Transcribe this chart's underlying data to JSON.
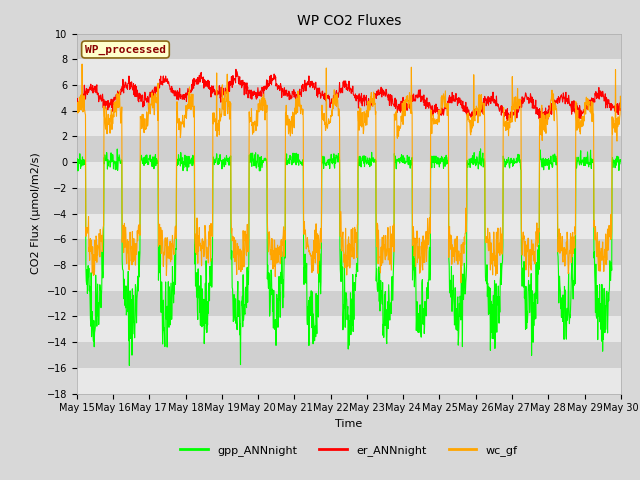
{
  "title": "WP CO2 Fluxes",
  "xlabel": "Time",
  "ylabel": "CO2 Flux (μmol/m2/s)",
  "ylim": [
    -18,
    10
  ],
  "yticks": [
    -18,
    -16,
    -14,
    -12,
    -10,
    -8,
    -6,
    -4,
    -2,
    0,
    2,
    4,
    6,
    8,
    10
  ],
  "xtick_labels": [
    "May 15",
    "May 16",
    "May 17",
    "May 18",
    "May 19",
    "May 20",
    "May 21",
    "May 22",
    "May 23",
    "May 24",
    "May 25",
    "May 26",
    "May 27",
    "May 28",
    "May 29",
    "May 30"
  ],
  "colors": {
    "gpp": "#00FF00",
    "er": "#FF0000",
    "wc": "#FFA500"
  },
  "legend_labels": [
    "gpp_ANNnight",
    "er_ANNnight",
    "wc_gf"
  ],
  "annotation_text": "WP_processed",
  "annotation_color": "#8B0000",
  "annotation_bg": "#FFFFCC",
  "annotation_border": "#8B6914",
  "bg_color": "#D8D8D8",
  "band_light": "#E8E8E8",
  "band_dark": "#D0D0D0",
  "linewidth": 0.8,
  "n_days": 15,
  "points_per_day": 96,
  "title_fontsize": 10,
  "axis_fontsize": 8,
  "tick_fontsize": 7,
  "legend_fontsize": 8
}
